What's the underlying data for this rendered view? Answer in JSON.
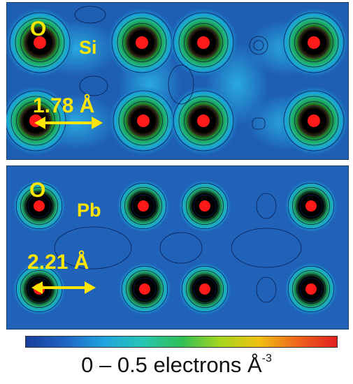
{
  "panels": {
    "top": {
      "labels": {
        "oxygen": "O",
        "element": "Si",
        "distance": "1.78 Å"
      },
      "background": "#1E5FB4"
    },
    "bottom": {
      "labels": {
        "oxygen": "O",
        "element": "Pb",
        "distance": "2.21 Å"
      },
      "background": "#1F62B8"
    }
  },
  "colorbar": {
    "colors": [
      "#1a3f9e",
      "#1f63c2",
      "#1fa3e0",
      "#27c6b4",
      "#2fbf55",
      "#a6d61e",
      "#f0c012",
      "#f0631b",
      "#e02020"
    ],
    "caption_main": "0 – 0.5 electrons Å",
    "caption_sup": "-3"
  },
  "colors": {
    "label": "#FFE600",
    "atom_core": "#FF1A1A",
    "contour_line": "#0A1E50"
  }
}
